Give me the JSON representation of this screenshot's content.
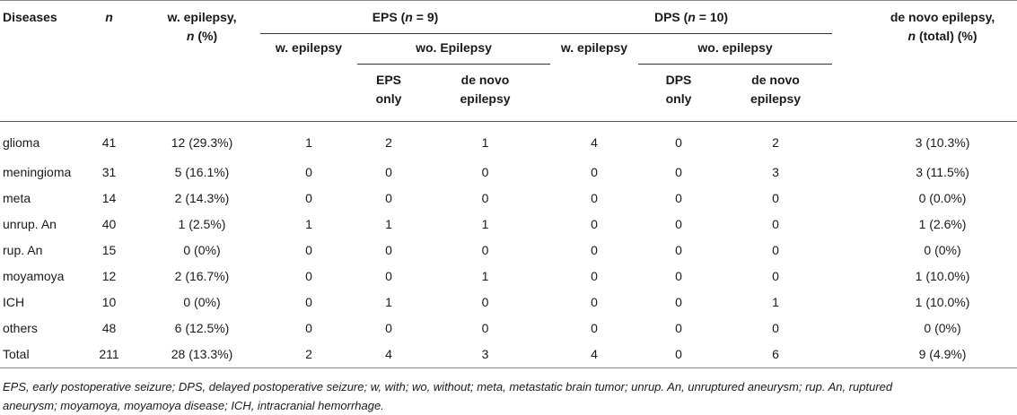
{
  "headers": {
    "diseases": "Diseases",
    "n": "n",
    "w_epilepsy_line1": "w. epilepsy,",
    "w_epilepsy_n": "n",
    "w_epilepsy_pct": "(%)",
    "eps_group_prefix": "EPS (",
    "eps_group_n": "n",
    "eps_group_suffix": " = 9)",
    "dps_group_prefix": "DPS (",
    "dps_group_n": "n",
    "dps_group_suffix": " = 10)",
    "denovo_line1": "de novo epilepsy,",
    "denovo_n": "n",
    "denovo_rest": "(total) (%)",
    "eps_w_epilepsy": "w. epilepsy",
    "eps_wo_epilepsy": "wo. Epilepsy",
    "dps_w_epilepsy": "w. epilepsy",
    "dps_wo_epilepsy": "wo. epilepsy",
    "eps_only_1": "EPS",
    "eps_only_2": "only",
    "eps_denovo_1": "de novo",
    "eps_denovo_2": "epilepsy",
    "dps_only_1": "DPS",
    "dps_only_2": "only",
    "dps_denovo_1": "de novo",
    "dps_denovo_2": "epilepsy"
  },
  "rows": [
    {
      "disease": "glioma",
      "n": "41",
      "w_epilepsy": "12 (29.3%)",
      "eps_w": "1",
      "eps_only": "2",
      "eps_denovo": "1",
      "dps_w": "4",
      "dps_only": "0",
      "dps_denovo": "2",
      "denovo_total": "3 (10.3%)"
    },
    {
      "disease": "meningioma",
      "n": "31",
      "w_epilepsy": "5 (16.1%)",
      "eps_w": "0",
      "eps_only": "0",
      "eps_denovo": "0",
      "dps_w": "0",
      "dps_only": "0",
      "dps_denovo": "3",
      "denovo_total": "3 (11.5%)"
    },
    {
      "disease": "meta",
      "n": "14",
      "w_epilepsy": "2 (14.3%)",
      "eps_w": "0",
      "eps_only": "0",
      "eps_denovo": "0",
      "dps_w": "0",
      "dps_only": "0",
      "dps_denovo": "0",
      "denovo_total": "0 (0.0%)"
    },
    {
      "disease": "unrup. An",
      "n": "40",
      "w_epilepsy": "1 (2.5%)",
      "eps_w": "1",
      "eps_only": "1",
      "eps_denovo": "1",
      "dps_w": "0",
      "dps_only": "0",
      "dps_denovo": "0",
      "denovo_total": "1 (2.6%)"
    },
    {
      "disease": "rup. An",
      "n": "15",
      "w_epilepsy": "0 (0%)",
      "eps_w": "0",
      "eps_only": "0",
      "eps_denovo": "0",
      "dps_w": "0",
      "dps_only": "0",
      "dps_denovo": "0",
      "denovo_total": "0 (0%)"
    },
    {
      "disease": "moyamoya",
      "n": "12",
      "w_epilepsy": "2 (16.7%)",
      "eps_w": "0",
      "eps_only": "0",
      "eps_denovo": "1",
      "dps_w": "0",
      "dps_only": "0",
      "dps_denovo": "0",
      "denovo_total": "1 (10.0%)"
    },
    {
      "disease": "ICH",
      "n": "10",
      "w_epilepsy": "0 (0%)",
      "eps_w": "0",
      "eps_only": "1",
      "eps_denovo": "0",
      "dps_w": "0",
      "dps_only": "0",
      "dps_denovo": "1",
      "denovo_total": "1 (10.0%)"
    },
    {
      "disease": "others",
      "n": "48",
      "w_epilepsy": "6 (12.5%)",
      "eps_w": "0",
      "eps_only": "0",
      "eps_denovo": "0",
      "dps_w": "0",
      "dps_only": "0",
      "dps_denovo": "0",
      "denovo_total": "0 (0%)"
    },
    {
      "disease": "Total",
      "n": "211",
      "w_epilepsy": "28 (13.3%)",
      "eps_w": "2",
      "eps_only": "4",
      "eps_denovo": "3",
      "dps_w": "4",
      "dps_only": "0",
      "dps_denovo": "6",
      "denovo_total": "9 (4.9%)"
    }
  ],
  "footnote_line1": "EPS, early postoperative seizure; DPS, delayed postoperative seizure; w, with; wo, without; meta, metastatic brain tumor; unrup. An, unruptured aneurysm; rup. An, ruptured",
  "footnote_line2": "aneurysm; moyamoya, moyamoya disease; ICH, intracranial hemorrhage."
}
